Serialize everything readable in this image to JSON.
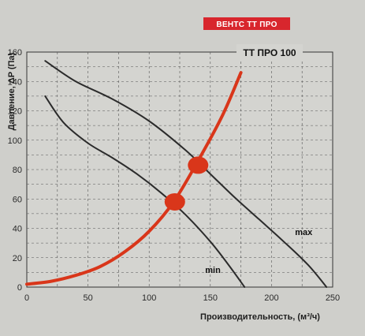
{
  "header": {
    "brand_label": "ВЕНТС ТТ ПРО"
  },
  "colors": {
    "brand_red": "#d8262d",
    "curve": "#2b2b2b",
    "marker": "#d9361a",
    "grid": "#555555"
  },
  "chart_data": {
    "type": "line",
    "title": "ТТ ПРО 100",
    "xlabel": "Производительность, (м³/ч)",
    "ylabel": "Давление, ΔP (Па)",
    "xlim": [
      0,
      250
    ],
    "ylim": [
      0,
      160
    ],
    "x_ticks": [
      0,
      50,
      100,
      150,
      200,
      250
    ],
    "y_ticks": [
      0,
      20,
      40,
      60,
      80,
      100,
      120,
      140,
      160
    ],
    "grid": true,
    "series": [
      {
        "name": "max",
        "x": [
          15,
          40,
          70,
          100,
          130,
          150,
          170,
          190,
          210,
          230,
          245
        ],
        "y": [
          154,
          140,
          128,
          113,
          93,
          77,
          61,
          46,
          31,
          15,
          0
        ]
      },
      {
        "name": "min",
        "x": [
          15,
          30,
          50,
          70,
          90,
          110,
          130,
          150,
          165,
          178
        ],
        "y": [
          130,
          112,
          98,
          88,
          77,
          64,
          49,
          31,
          15,
          0
        ]
      },
      {
        "name": "",
        "x": [
          0,
          20,
          40,
          60,
          80,
          100,
          120,
          140,
          160,
          175
        ],
        "y": [
          2,
          4,
          8,
          14,
          24,
          38,
          58,
          86,
          117,
          146
        ]
      }
    ],
    "points": [
      {
        "x": 140,
        "y": 83
      },
      {
        "x": 121,
        "y": 58
      }
    ]
  }
}
